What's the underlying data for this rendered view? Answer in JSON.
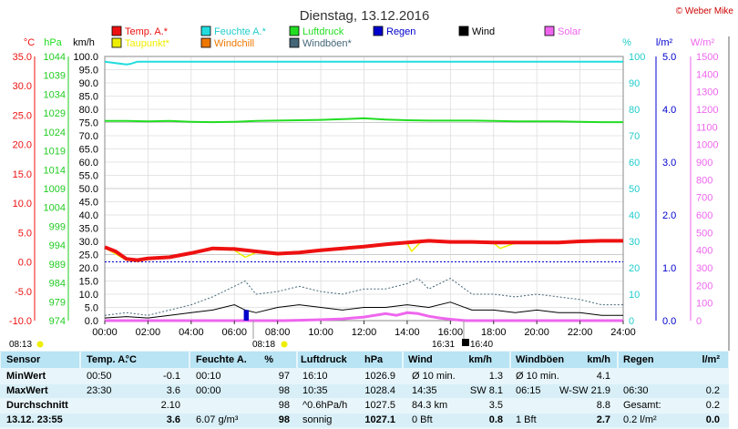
{
  "page": {
    "title": "Dienstag, 13.12.2016",
    "copyright": "© Weber Mike"
  },
  "legend": [
    {
      "label": "Temp. A.*",
      "color": "#ee1111"
    },
    {
      "label": "Feuchte A.*",
      "color": "#22dddd"
    },
    {
      "label": "Luftdruck",
      "color": "#22dd22"
    },
    {
      "label": "Regen",
      "color": "#0000cc"
    },
    {
      "label": "Wind",
      "color": "#000000"
    },
    {
      "label": "Solar",
      "color": "#ee66ee"
    },
    {
      "label": "Taupunkt*",
      "color": "#eeee00"
    },
    {
      "label": "Windchill",
      "color": "#ee7700"
    },
    {
      "label": "Windböen*",
      "color": "#446677"
    }
  ],
  "axes": {
    "temp_unit": "°C",
    "pressure_unit": "hPa",
    "wind_unit": "km/h",
    "humidity_unit": "%",
    "rain_unit": "l/m²",
    "solar_unit": "W/m²",
    "temp_ticks": [
      "35.0",
      "30.0",
      "25.0",
      "20.0",
      "15.0",
      "10.0",
      "5.0",
      "0.0",
      "-5.0",
      "-10.0"
    ],
    "pressure_ticks": [
      "1044",
      "1039",
      "1034",
      "1029",
      "1024",
      "1019",
      "1014",
      "1009",
      "1004",
      "999",
      "994",
      "989",
      "984",
      "979",
      "974"
    ],
    "wind_ticks": [
      "100.0",
      "95.0",
      "90.0",
      "85.0",
      "80.0",
      "75.0",
      "70.0",
      "65.0",
      "60.0",
      "55.0",
      "50.0",
      "45.0",
      "40.0",
      "35.0",
      "30.0",
      "25.0",
      "20.0",
      "15.0",
      "10.0",
      "5.0",
      "0.0"
    ],
    "humidity_ticks": [
      "100",
      "90",
      "80",
      "70",
      "60",
      "50",
      "40",
      "30",
      "20",
      "10",
      "0"
    ],
    "rain_ticks": [
      "5.0",
      "4.0",
      "3.0",
      "2.0",
      "1.0",
      "0.0"
    ],
    "solar_ticks": [
      "1500",
      "1400",
      "1300",
      "1200",
      "1100",
      "1000",
      "900",
      "800",
      "700",
      "600",
      "500",
      "400",
      "300",
      "200",
      "100",
      "0"
    ],
    "time_ticks": [
      "00:00",
      "02:00",
      "04:00",
      "06:00",
      "08:00",
      "10:00",
      "12:00",
      "14:00",
      "16:00",
      "18:00",
      "20:00",
      "22:00",
      "24:00"
    ],
    "events": {
      "sunrise": "08:13",
      "sunset_marker": "08:18",
      "max_a": "16:31",
      "max_b": "16:40"
    }
  },
  "chart_data": {
    "type": "line",
    "x_unit": "hour",
    "xlim": [
      0,
      24
    ],
    "series": [
      {
        "name": "Temp. A.*",
        "axis": "°C",
        "ylim": [
          -10,
          35
        ],
        "x": [
          0,
          0.5,
          1,
          1.5,
          2,
          3,
          4,
          5,
          6,
          7,
          8,
          9,
          10,
          11,
          12,
          13,
          14,
          15,
          16,
          17,
          18,
          19,
          20,
          21,
          22,
          23,
          24
        ],
        "values": [
          2.5,
          1.8,
          0.5,
          0.3,
          0.6,
          0.8,
          1.5,
          2.3,
          2.2,
          1.8,
          1.4,
          1.6,
          2.0,
          2.3,
          2.6,
          3.0,
          3.3,
          3.6,
          3.4,
          3.4,
          3.3,
          3.3,
          3.3,
          3.3,
          3.5,
          3.6,
          3.6
        ]
      },
      {
        "name": "Taupunkt*",
        "axis": "°C",
        "ylim": [
          -10,
          35
        ],
        "x": [
          0,
          1,
          1.5,
          2,
          3,
          4,
          5,
          6,
          6.5,
          7,
          8,
          9,
          10,
          11,
          12,
          13,
          14,
          14.2,
          14.6,
          15,
          16,
          17,
          18,
          18.3,
          19,
          20,
          21,
          22,
          23,
          24
        ],
        "values": [
          2.4,
          0.3,
          0.1,
          0.4,
          0.7,
          1.4,
          2.2,
          2.0,
          0.8,
          1.6,
          1.2,
          1.5,
          1.9,
          2.2,
          2.5,
          2.9,
          3.2,
          1.8,
          3.3,
          3.5,
          3.3,
          3.3,
          3.2,
          2.3,
          3.2,
          3.2,
          3.2,
          3.4,
          3.5,
          3.5
        ]
      },
      {
        "name": "Feuchte A.*",
        "axis": "%",
        "ylim": [
          0,
          100
        ],
        "x": [
          0,
          0.5,
          1,
          1.2,
          1.5,
          2,
          4,
          6,
          8,
          10,
          12,
          14,
          16,
          18,
          20,
          22,
          24
        ],
        "values": [
          98,
          97.5,
          97,
          97.2,
          98,
          98,
          98,
          98,
          98,
          98,
          98,
          98,
          98,
          98,
          98,
          98,
          98
        ]
      },
      {
        "name": "Luftdruck",
        "axis": "hPa",
        "ylim": [
          974,
          1044
        ],
        "x": [
          0,
          1,
          2,
          3,
          4,
          5,
          6,
          7,
          8,
          9,
          10,
          11,
          12,
          13,
          14,
          15,
          16,
          17,
          18,
          19,
          20,
          21,
          22,
          23,
          24
        ],
        "values": [
          1026.9,
          1026.9,
          1026.8,
          1026.9,
          1026.7,
          1026.6,
          1026.7,
          1026.9,
          1027.0,
          1027.1,
          1027.2,
          1027.4,
          1027.6,
          1027.3,
          1027.1,
          1027.0,
          1027.0,
          1027.0,
          1026.9,
          1026.8,
          1026.8,
          1026.8,
          1026.7,
          1026.6,
          1026.6
        ]
      },
      {
        "name": "Wind",
        "axis": "km/h",
        "ylim": [
          0,
          100
        ],
        "x": [
          0,
          1,
          2,
          3,
          4,
          5,
          6,
          6.5,
          7,
          8,
          9,
          10,
          11,
          12,
          13,
          14,
          15,
          16,
          17,
          18,
          19,
          20,
          21,
          22,
          23,
          24
        ],
        "values": [
          1,
          1.5,
          1,
          2,
          3,
          4,
          6,
          4,
          3,
          5,
          6,
          5,
          4,
          5,
          5,
          6,
          5,
          7,
          4,
          4,
          3,
          4,
          3,
          3,
          2,
          2
        ]
      },
      {
        "name": "Windböen*",
        "axis": "km/h",
        "ylim": [
          0,
          100
        ],
        "x": [
          0,
          1,
          2,
          3,
          4,
          5,
          6,
          6.5,
          7,
          8,
          9,
          10,
          11,
          12,
          13,
          14,
          14.5,
          15,
          16,
          17,
          18,
          19,
          20,
          21,
          22,
          23,
          24
        ],
        "values": [
          2,
          3,
          2,
          4,
          6,
          9,
          13,
          15,
          10,
          11,
          13,
          11,
          10,
          12,
          12,
          14,
          16,
          12,
          16,
          10,
          10,
          9,
          10,
          9,
          8,
          6,
          6
        ]
      },
      {
        "name": "Solar",
        "axis": "W/m²",
        "ylim": [
          0,
          1500
        ],
        "x": [
          0,
          8.3,
          9,
          10,
          11,
          12,
          13,
          13.5,
          14,
          14.5,
          15,
          15.5,
          16,
          16.7,
          24
        ],
        "values": [
          0,
          0,
          2,
          5,
          10,
          20,
          40,
          30,
          45,
          40,
          25,
          15,
          8,
          0,
          0
        ]
      },
      {
        "name": "Regen",
        "axis": "l/m²",
        "ylim": [
          0,
          5
        ],
        "x": [
          6.5,
          6.6
        ],
        "values": [
          0.2,
          0.2
        ]
      }
    ]
  },
  "table": {
    "headers": [
      "Sensor",
      "Temp. A.",
      "°C",
      "Feuchte A.",
      "%",
      "Luftdruck",
      "hPa",
      "Wind",
      "km/h",
      "Windböen",
      "km/h",
      "Regen",
      "l/m²"
    ],
    "rows": [
      {
        "label": "MinWert",
        "c": [
          "00:50",
          "-0.1",
          "00:10",
          "97",
          "16:10",
          "1026.9",
          "Ø 10 min.",
          "1.3",
          "Ø 10 min.",
          "4.1",
          "",
          ""
        ]
      },
      {
        "label": "MaxWert",
        "c": [
          "23:30",
          "3.6",
          "00:00",
          "98",
          "10:35",
          "1028.4",
          "14:35",
          "SW 8.1",
          "06:15",
          "W-SW 21.9",
          "06:30",
          "0.2"
        ]
      },
      {
        "label": "Durchschnitt",
        "c": [
          "",
          "2.10",
          "",
          "98",
          "^0.6hPa/h",
          "1027.5",
          "84.3 km",
          "3.5",
          "",
          "8.8",
          "Gesamt:",
          "0.2"
        ]
      },
      {
        "label": "13.12. 23:55",
        "c": [
          "",
          "3.6",
          "6.07 g/m³",
          "98",
          "sonnig",
          "1027.1",
          "0 Bft",
          "0.8",
          "1 Bft",
          "2.7",
          "0.2 l/m²",
          "0.0"
        ]
      }
    ]
  }
}
